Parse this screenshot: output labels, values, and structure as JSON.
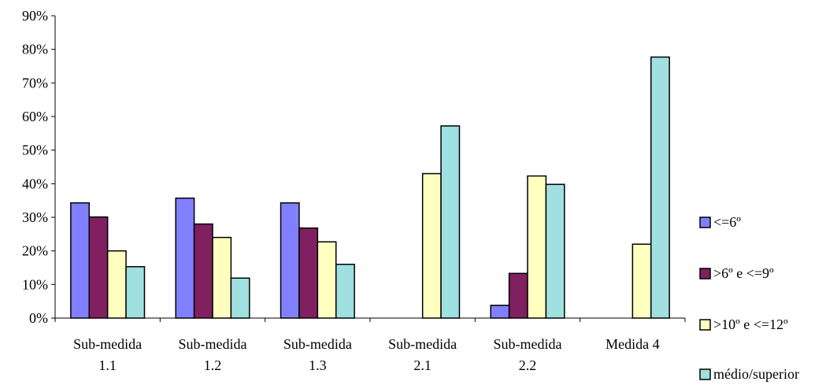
{
  "chart_data": {
    "type": "bar",
    "categories": [
      [
        "Sub-medida",
        "1.1"
      ],
      [
        "Sub-medida",
        "1.2"
      ],
      [
        "Sub-medida",
        "1.3"
      ],
      [
        "Sub-medida",
        "2.1"
      ],
      [
        "Sub-medida",
        "2.2"
      ],
      [
        "Medida 4"
      ]
    ],
    "series": [
      {
        "name": "<=6º",
        "color": "#8080FF",
        "values": [
          34.3,
          35.7,
          34.3,
          0,
          3.8,
          0
        ]
      },
      {
        "name": ">6º e <=9º",
        "color": "#802060",
        "values": [
          30.1,
          28.0,
          26.8,
          0,
          13.3,
          0
        ]
      },
      {
        "name": ">10º e <=12º",
        "color": "#FFFFC0",
        "values": [
          20.0,
          24.0,
          22.7,
          43.0,
          42.3,
          22.0
        ]
      },
      {
        "name": "médio/superior",
        "color": "#A0E0E0",
        "values": [
          15.3,
          11.9,
          16.0,
          57.2,
          39.8,
          77.7
        ]
      }
    ],
    "ylim": [
      0,
      90
    ],
    "yticks": [
      0,
      10,
      20,
      30,
      40,
      50,
      60,
      70,
      80,
      90
    ],
    "ytick_labels": [
      "0%",
      "10%",
      "20%",
      "30%",
      "40%",
      "50%",
      "60%",
      "70%",
      "80%",
      "90%"
    ],
    "title": "",
    "xlabel": "",
    "ylabel": "",
    "grid": false,
    "legend_position": "right"
  }
}
